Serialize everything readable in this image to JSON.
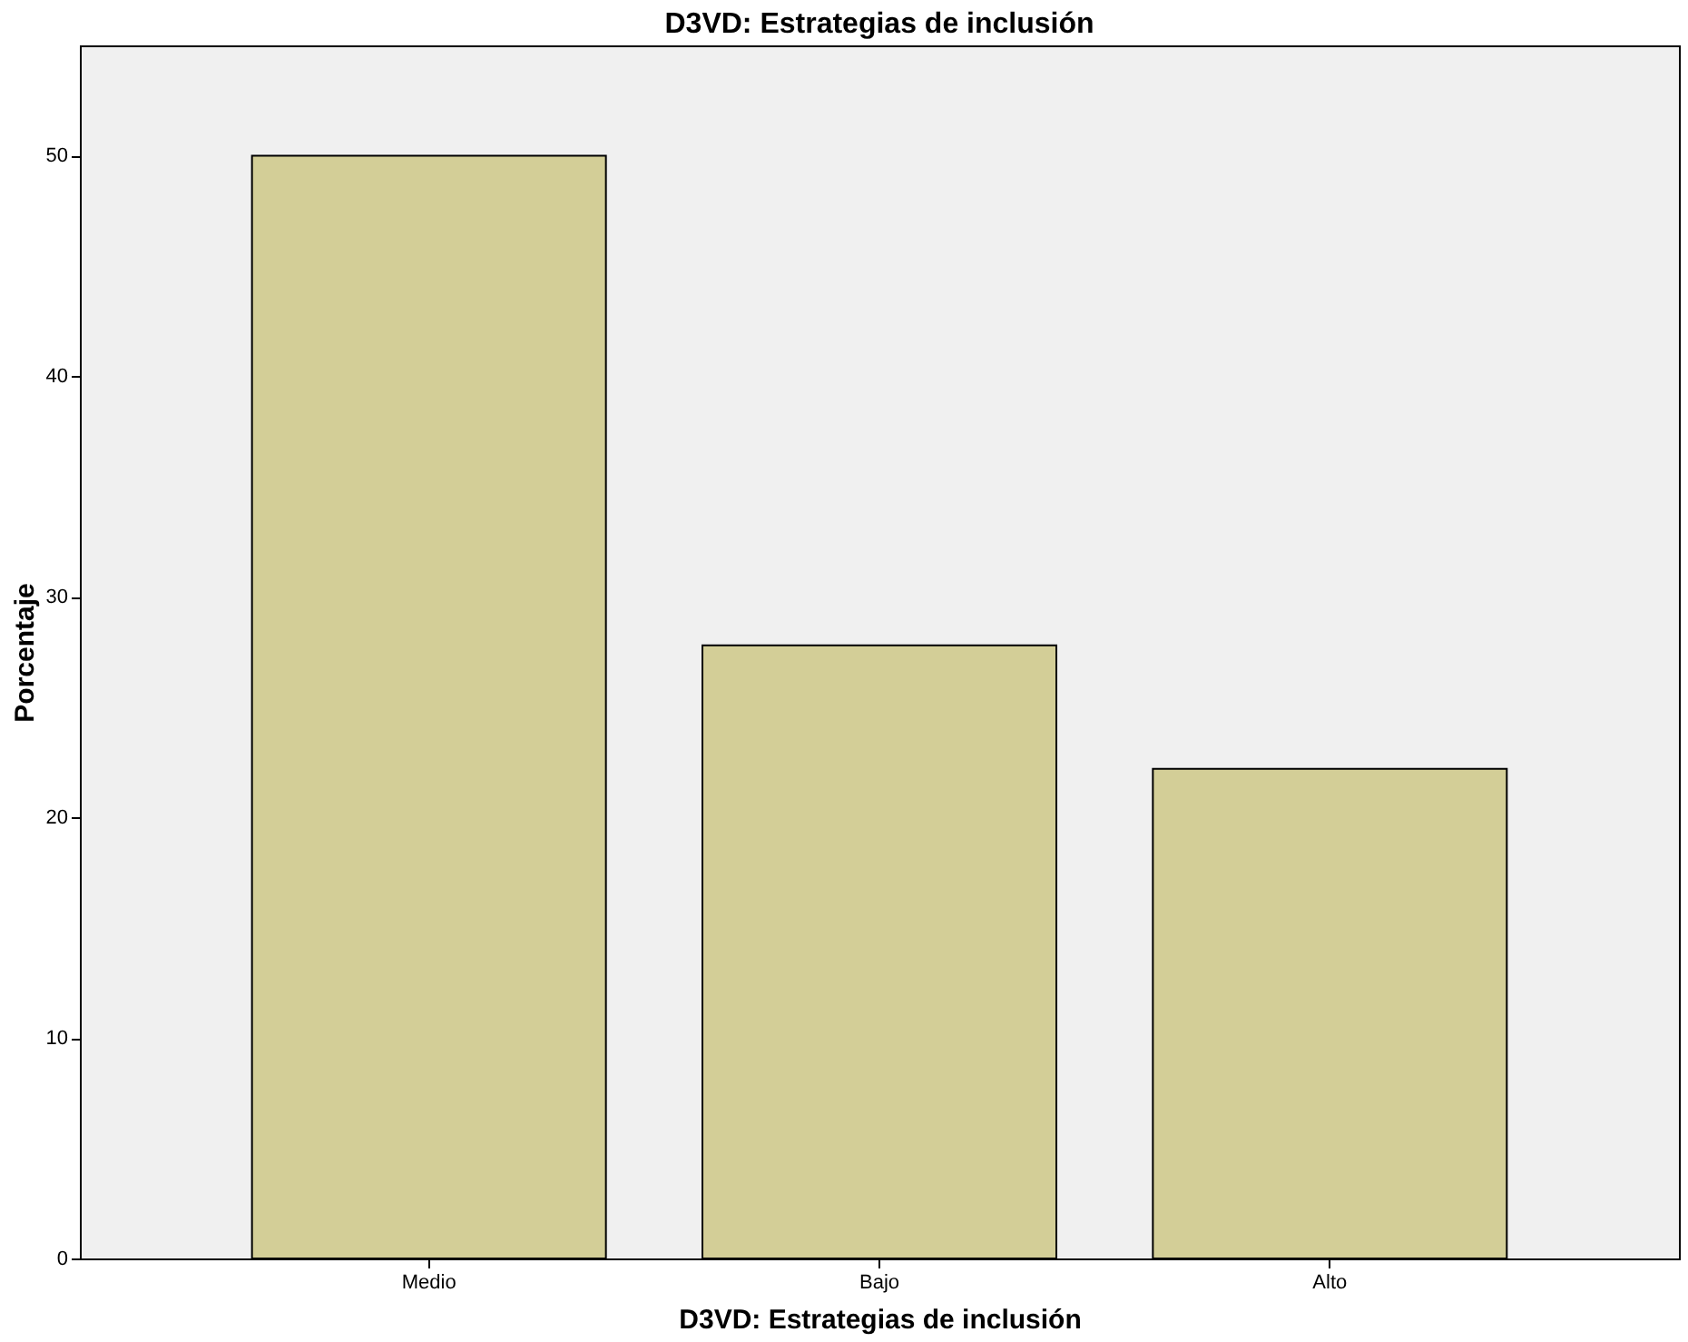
{
  "chart_data": {
    "type": "bar",
    "title": "D3VD: Estrategias de inclusión",
    "xlabel": "D3VD: Estrategias de inclusión",
    "ylabel": "Porcentaje",
    "categories": [
      "Medio",
      "Bajo",
      "Alto"
    ],
    "values": [
      50,
      27.8,
      22.2
    ],
    "color": "#d3ce97",
    "ylim": [
      0,
      55
    ],
    "yticks": [
      0,
      10,
      20,
      30,
      40,
      50
    ],
    "grid": false
  }
}
